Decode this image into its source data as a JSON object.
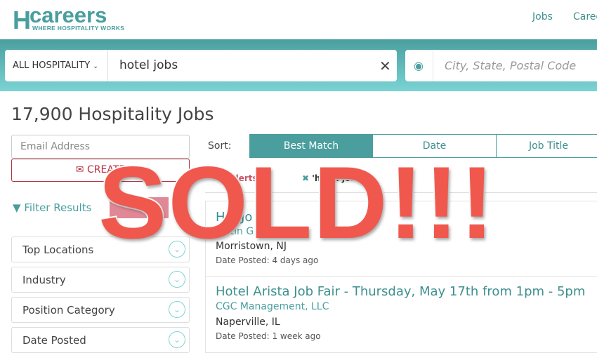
{
  "logo": {
    "mark": "H",
    "name": "careers",
    "tagline": "WHERE HOSPITALITY WORKS"
  },
  "nav": [
    "Jobs",
    "Caree"
  ],
  "search": {
    "category": "ALL HOSPITALITY",
    "keyword": "hotel jobs",
    "location_placeholder": "City, State, Postal Code"
  },
  "colors": {
    "brand": "#4a9e9e",
    "alert": "#b5303f",
    "overlay": "#f0584e"
  },
  "title": "17,900 Hospitality Jobs",
  "alert": {
    "email_placeholder": "Email Address",
    "create_label": "CREATE"
  },
  "filters": {
    "label": "Filter Results",
    "button": "",
    "sections": [
      "Top Locations",
      "Industry",
      "Position Category",
      "Date Posted"
    ]
  },
  "sort": {
    "label": "Sort:",
    "options": [
      "Best Match",
      "Date",
      "Job Title"
    ],
    "active": "Best Match"
  },
  "chips": [
    "r Alerts",
    "'hotel jobs'"
  ],
  "jobs": [
    {
      "title": "H... Jo",
      "company": "...stin G...",
      "location": "Morristown, NJ",
      "date": "Date Posted: 4 days ago"
    },
    {
      "title": "Hotel Arista Job Fair - Thursday, May 17th from 1pm - 5pm",
      "company": "CGC Management, LLC",
      "location": "Naperville, IL",
      "date": "Date Posted: 1 week ago"
    }
  ],
  "overlay": "SOLD!!!"
}
